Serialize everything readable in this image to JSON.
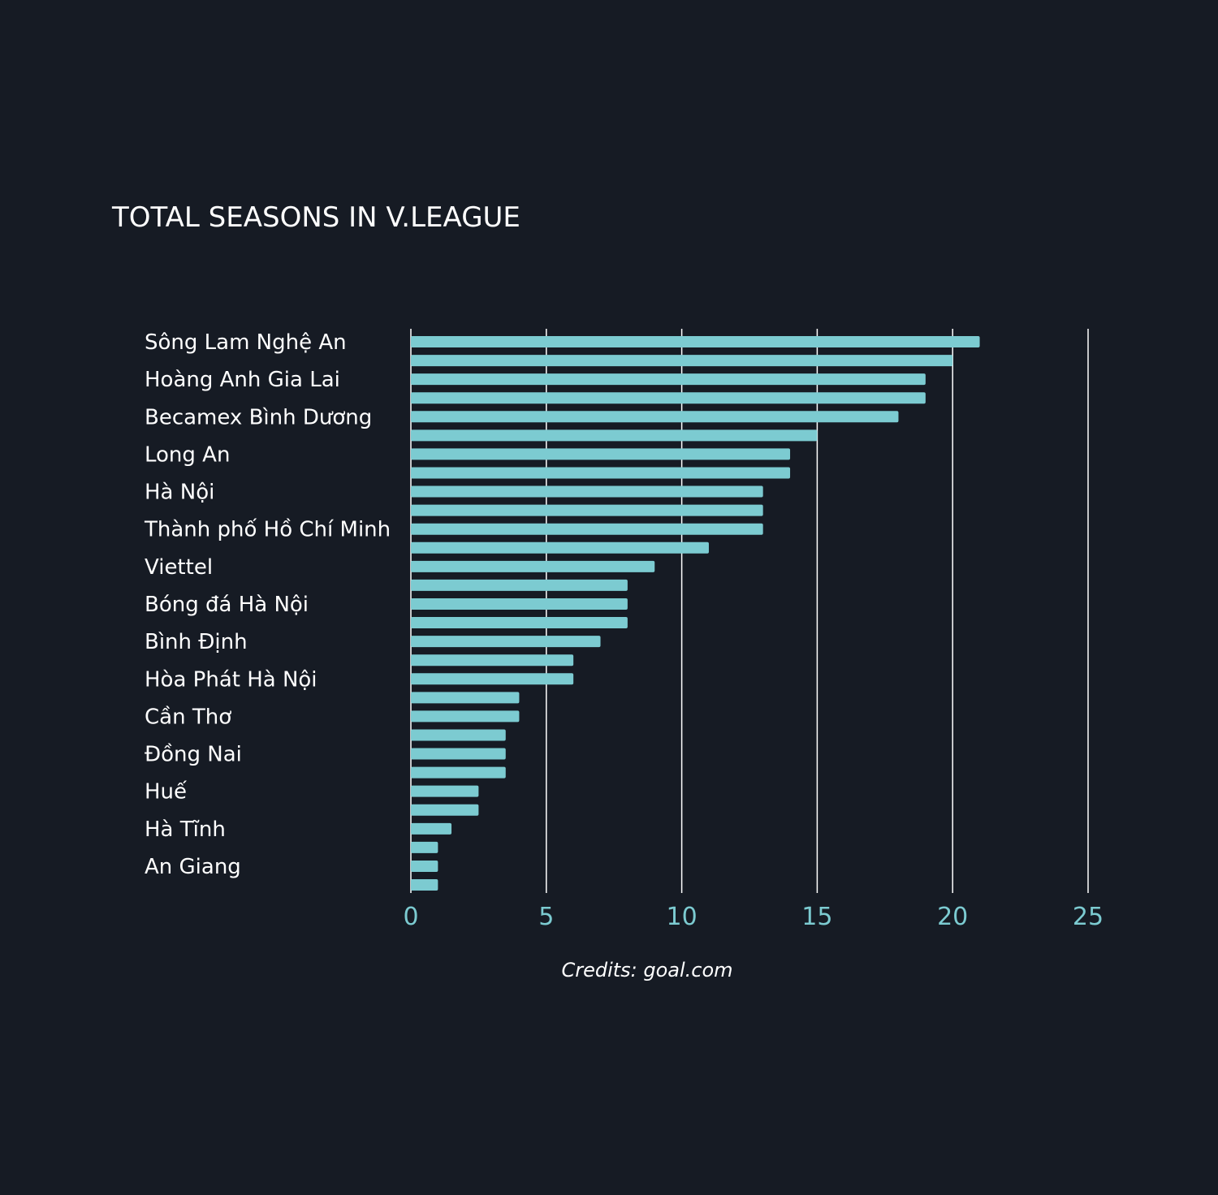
{
  "chart_data": {
    "type": "bar",
    "orientation": "horizontal",
    "title": "TOTAL SEASONS IN V.LEAGUE",
    "credit": "Credits: goal.com",
    "labels_shown": [
      "Sông Lam Nghệ An",
      "Hoàng Anh Gia Lai",
      "Becamex Bình Dương",
      "Long An",
      "Hà Nội",
      "Thành phố Hồ Chí Minh",
      "Viettel",
      "Bóng đá Hà Nội",
      "Bình Định",
      "Hòa Phát Hà Nội",
      "Cần Thơ",
      "Đồng Nai",
      "Huế",
      "Hà Tĩnh",
      "An Giang"
    ],
    "values": [
      21,
      20,
      19,
      19,
      18,
      15,
      14,
      14,
      13,
      13,
      13,
      11,
      9,
      8,
      8,
      8,
      7,
      6,
      6,
      4,
      4,
      3.5,
      3.5,
      3.5,
      2.5,
      2.5,
      1.5,
      1,
      1,
      1
    ],
    "xlim": [
      0,
      25
    ],
    "xticks": [
      "0",
      "5",
      "10",
      "15",
      "20",
      "25"
    ],
    "grid": "vertical",
    "colors": {
      "background": "#161b24",
      "bar": "#7ccbd1",
      "gridline": "#ffffff",
      "tick_label": "#7ccbd1",
      "text": "#ffffff"
    }
  }
}
